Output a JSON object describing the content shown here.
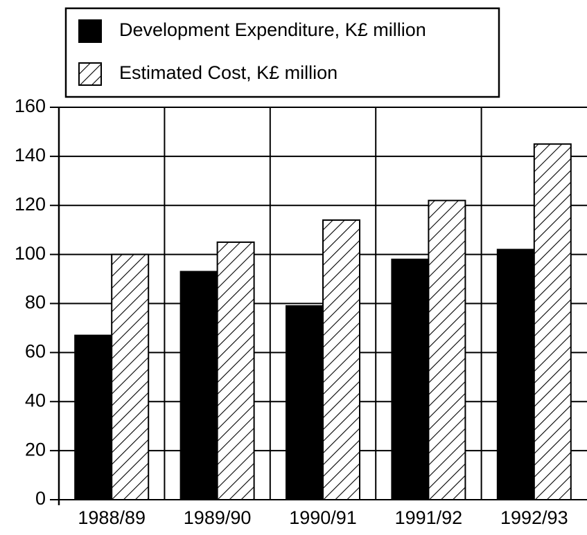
{
  "chart_data": {
    "type": "bar",
    "categories": [
      "1988/89",
      "1989/90",
      "1990/91",
      "1991/92",
      "1992/93"
    ],
    "series": [
      {
        "name": "Development Expenditure, K£ million",
        "color": "#000000",
        "hatch": false,
        "values": [
          67,
          93,
          79,
          98,
          102
        ]
      },
      {
        "name": "Estimated Cost, K£ million",
        "color": "#000000",
        "hatch": true,
        "values": [
          100,
          105,
          114,
          122,
          145
        ]
      }
    ],
    "ylim": [
      0,
      160
    ],
    "yticks": [
      0,
      20,
      40,
      60,
      80,
      100,
      120,
      140,
      160
    ],
    "grid": true
  }
}
